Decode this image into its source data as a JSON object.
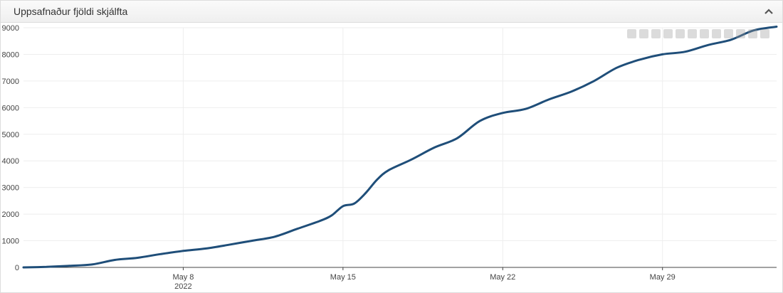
{
  "panel": {
    "title": "Uppsafnaður fjöldi skjálfta"
  },
  "modebar": {
    "icons": [
      "camera-icon",
      "zoom-select-icon",
      "zoom-icon",
      "pan-icon",
      "zoom-in-icon",
      "zoom-out-icon",
      "autoscale-icon",
      "reset-axes-icon",
      "spike-lines-icon",
      "hover-closest-icon",
      "hover-compare-icon",
      "plotly-logo-icon"
    ]
  },
  "colors": {
    "line": "#1f4e79",
    "grid": "#eeeeee",
    "axis": "#444444",
    "tick_text": "#444444"
  },
  "chart_data": {
    "type": "line",
    "title": "",
    "xlabel": "",
    "ylabel": "",
    "xlim": [
      "2022-05-01",
      "2022-06-03"
    ],
    "ylim": [
      0,
      9000
    ],
    "yticks": [
      0,
      1000,
      2000,
      3000,
      4000,
      5000,
      6000,
      7000,
      8000,
      9000
    ],
    "xticks": [
      {
        "date": "2022-05-08",
        "label": "May 8",
        "sublabel": "2022"
      },
      {
        "date": "2022-05-15",
        "label": "May 15",
        "sublabel": ""
      },
      {
        "date": "2022-05-22",
        "label": "May 22",
        "sublabel": ""
      },
      {
        "date": "2022-05-29",
        "label": "May 29",
        "sublabel": ""
      }
    ],
    "grid": true,
    "series": [
      {
        "x": [
          "2022-05-01",
          "2022-05-02",
          "2022-05-03",
          "2022-05-04",
          "2022-05-05",
          "2022-05-06",
          "2022-05-07",
          "2022-05-08",
          "2022-05-09",
          "2022-05-10",
          "2022-05-11",
          "2022-05-12",
          "2022-05-13",
          "2022-05-14",
          "2022-05-14T12:00",
          "2022-05-15",
          "2022-05-15T12:00",
          "2022-05-16",
          "2022-05-16T12:00",
          "2022-05-17",
          "2022-05-18",
          "2022-05-19",
          "2022-05-20",
          "2022-05-21",
          "2022-05-22",
          "2022-05-23",
          "2022-05-24",
          "2022-05-25",
          "2022-05-26",
          "2022-05-27",
          "2022-05-28",
          "2022-05-29",
          "2022-05-30",
          "2022-05-31",
          "2022-06-01",
          "2022-06-02",
          "2022-06-03"
        ],
        "values": [
          0,
          20,
          60,
          110,
          280,
          360,
          500,
          620,
          710,
          850,
          1000,
          1150,
          1450,
          1750,
          1950,
          2300,
          2400,
          2800,
          3300,
          3650,
          4050,
          4500,
          4850,
          5500,
          5800,
          5950,
          6300,
          6600,
          7000,
          7500,
          7800,
          8000,
          8100,
          8350,
          8550,
          8900,
          9040
        ]
      }
    ]
  }
}
